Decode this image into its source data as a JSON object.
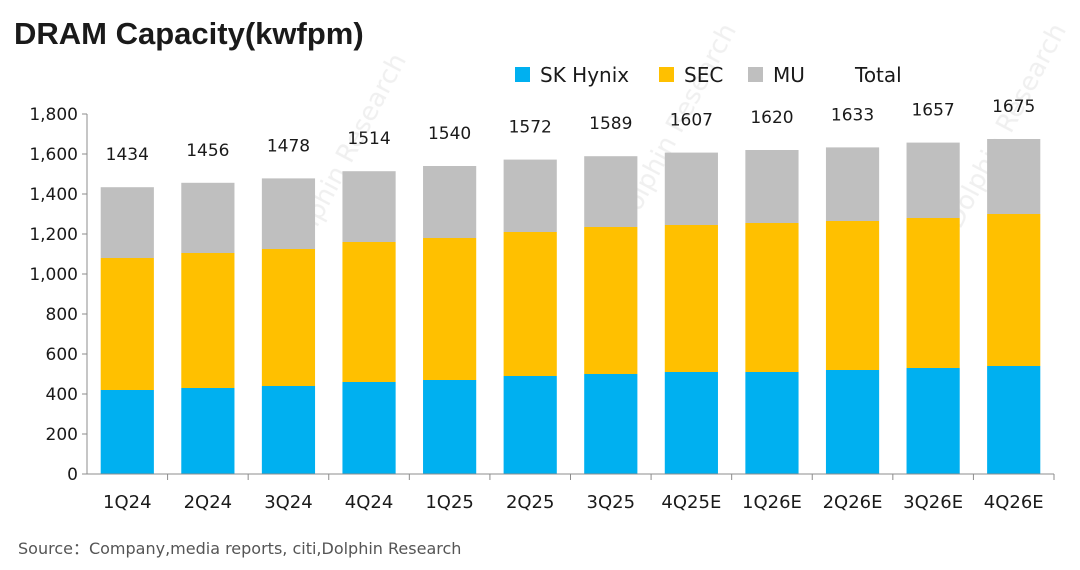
{
  "chart_data": {
    "type": "bar",
    "stacked": true,
    "title": "DRAM Capacity(kwfpm)",
    "categories": [
      "1Q24",
      "2Q24",
      "3Q24",
      "4Q24",
      "1Q25",
      "2Q25",
      "3Q25",
      "4Q25E",
      "1Q26E",
      "2Q26E",
      "3Q26E",
      "4Q26E"
    ],
    "series": [
      {
        "name": "SK Hynix",
        "color": "#00B0F0",
        "values": [
          420,
          430,
          440,
          460,
          470,
          490,
          500,
          510,
          510,
          520,
          530,
          540
        ]
      },
      {
        "name": "SEC",
        "color": "#FFC000",
        "values": [
          660,
          675,
          685,
          700,
          710,
          720,
          735,
          735,
          745,
          745,
          750,
          760
        ]
      },
      {
        "name": "MU",
        "color": "#BFBFBF",
        "values": [
          354,
          351,
          353,
          354,
          360,
          362,
          354,
          362,
          365,
          368,
          377,
          375
        ]
      }
    ],
    "totals_label": "Total",
    "totals": [
      1434,
      1456,
      1478,
      1514,
      1540,
      1572,
      1589,
      1607,
      1620,
      1633,
      1657,
      1675
    ],
    "ylim": [
      0,
      1800
    ],
    "yticks": [
      "0",
      "200",
      "400",
      "600",
      "800",
      "1,000",
      "1,200",
      "1,400",
      "1,600",
      "1,800"
    ],
    "xlabel": "",
    "ylabel": "",
    "legend_position": "top-right",
    "grid": false
  },
  "source": "Source：Company,media  reports,  citi,Dolphin  Research"
}
